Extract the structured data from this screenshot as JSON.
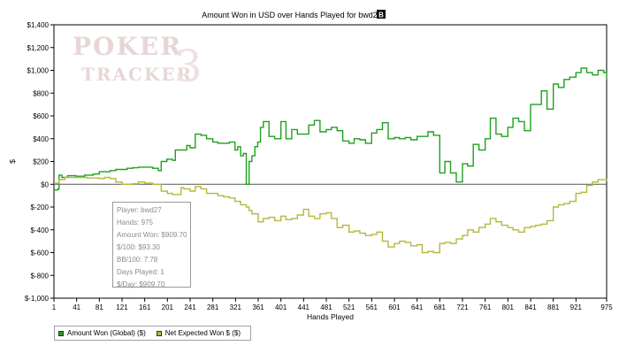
{
  "chart_data": {
    "type": "line",
    "title": "Amount Won in USD over Hands Played for bwd27",
    "title_badge": "B",
    "xlabel": "Hands Played",
    "ylabel": "$",
    "xlim": [
      1,
      975
    ],
    "ylim": [
      -1000,
      1400
    ],
    "x_ticks": [
      1,
      41,
      81,
      121,
      161,
      201,
      241,
      281,
      321,
      361,
      401,
      441,
      481,
      521,
      561,
      601,
      641,
      681,
      721,
      761,
      801,
      841,
      881,
      921,
      975
    ],
    "y_ticks": [
      {
        "value": 1400,
        "label": "$1,400"
      },
      {
        "value": 1200,
        "label": "$1,200"
      },
      {
        "value": 1000,
        "label": "$1,000"
      },
      {
        "value": 800,
        "label": "$800"
      },
      {
        "value": 600,
        "label": "$600"
      },
      {
        "value": 400,
        "label": "$400"
      },
      {
        "value": 200,
        "label": "$200"
      },
      {
        "value": 0,
        "label": "$0"
      },
      {
        "value": -200,
        "label": "$-200"
      },
      {
        "value": -400,
        "label": "$-400"
      },
      {
        "value": -600,
        "label": "$-600"
      },
      {
        "value": -800,
        "label": "$-800"
      },
      {
        "value": -1000,
        "label": "$-1,000"
      }
    ],
    "grid": false,
    "legend_position": "bottom-left",
    "watermark": {
      "line1": "POKER",
      "line2": "TRACKER",
      "numeral": "3"
    },
    "series": [
      {
        "name": "Amount Won (Global) ($)",
        "color": "#1fa11f",
        "x": [
          1,
          8,
          10,
          15,
          25,
          40,
          55,
          70,
          81,
          90,
          100,
          105,
          110,
          121,
          130,
          140,
          150,
          161,
          175,
          185,
          190,
          200,
          210,
          215,
          225,
          235,
          241,
          250,
          260,
          270,
          281,
          290,
          300,
          310,
          320,
          325,
          330,
          335,
          340,
          345,
          350,
          355,
          360,
          365,
          370,
          380,
          390,
          401,
          410,
          420,
          430,
          441,
          450,
          460,
          470,
          481,
          490,
          500,
          510,
          521,
          530,
          540,
          550,
          561,
          570,
          580,
          590,
          601,
          610,
          620,
          630,
          641,
          650,
          660,
          670,
          681,
          690,
          700,
          710,
          721,
          730,
          740,
          750,
          761,
          770,
          780,
          790,
          801,
          810,
          820,
          830,
          841,
          850,
          860,
          870,
          881,
          890,
          900,
          910,
          921,
          930,
          940,
          950,
          960,
          970,
          975
        ],
        "y": [
          -50,
          -40,
          80,
          60,
          75,
          70,
          80,
          90,
          110,
          110,
          120,
          120,
          130,
          130,
          140,
          145,
          150,
          150,
          140,
          120,
          200,
          220,
          210,
          300,
          300,
          340,
          320,
          440,
          430,
          400,
          370,
          360,
          360,
          370,
          300,
          330,
          250,
          270,
          0,
          200,
          250,
          330,
          370,
          500,
          550,
          420,
          400,
          550,
          400,
          480,
          440,
          440,
          520,
          560,
          460,
          480,
          500,
          470,
          380,
          360,
          400,
          390,
          360,
          450,
          480,
          540,
          400,
          410,
          400,
          410,
          390,
          420,
          420,
          460,
          430,
          100,
          200,
          100,
          20,
          180,
          160,
          350,
          300,
          400,
          580,
          440,
          420,
          500,
          580,
          550,
          470,
          700,
          700,
          820,
          660,
          880,
          850,
          920,
          940,
          980,
          1020,
          980,
          960,
          1000,
          980,
          920
        ]
      },
      {
        "name": "Net Expected Won $ ($)",
        "color": "#b5b83a",
        "x": [
          1,
          10,
          20,
          40,
          60,
          81,
          90,
          100,
          110,
          121,
          130,
          140,
          150,
          161,
          175,
          190,
          201,
          210,
          220,
          225,
          230,
          241,
          250,
          260,
          270,
          281,
          290,
          300,
          310,
          320,
          330,
          340,
          345,
          350,
          361,
          370,
          380,
          390,
          401,
          410,
          420,
          430,
          441,
          450,
          460,
          470,
          481,
          490,
          500,
          510,
          521,
          530,
          540,
          550,
          561,
          570,
          580,
          590,
          601,
          610,
          620,
          630,
          641,
          650,
          660,
          670,
          681,
          690,
          700,
          710,
          721,
          730,
          740,
          750,
          761,
          770,
          780,
          790,
          801,
          810,
          820,
          830,
          841,
          850,
          860,
          870,
          881,
          890,
          900,
          910,
          921,
          930,
          940,
          950,
          960,
          975
        ],
        "y": [
          10,
          40,
          60,
          60,
          55,
          50,
          60,
          50,
          20,
          0,
          0,
          5,
          20,
          10,
          0,
          -60,
          -80,
          -90,
          -90,
          -30,
          -40,
          -60,
          -20,
          -40,
          -80,
          -80,
          -100,
          -110,
          -120,
          -150,
          -180,
          -200,
          -230,
          -260,
          -330,
          -300,
          -290,
          -320,
          -280,
          -310,
          -300,
          -270,
          -220,
          -280,
          -300,
          -260,
          -250,
          -300,
          -380,
          -360,
          -420,
          -410,
          -430,
          -450,
          -440,
          -420,
          -500,
          -550,
          -520,
          -500,
          -510,
          -540,
          -530,
          -600,
          -590,
          -600,
          -520,
          -510,
          -520,
          -480,
          -450,
          -400,
          -420,
          -380,
          -350,
          -300,
          -330,
          -360,
          -380,
          -400,
          -420,
          -380,
          -370,
          -360,
          -350,
          -320,
          -200,
          -180,
          -170,
          -150,
          -80,
          -70,
          -10,
          20,
          40,
          30
        ]
      }
    ]
  },
  "tooltip": {
    "lines": [
      "Player: bwd27",
      "Hands: 975",
      "Amount Won: $909.70",
      "$/100: $93.30",
      "BB/100: 7.78",
      "Days Played: 1",
      "$/Day: $909.70"
    ]
  },
  "legend": {
    "items": [
      {
        "label": "Amount Won (Global) ($)",
        "color": "#1fa11f"
      },
      {
        "label": "Net Expected Won $ ($)",
        "color": "#b5b83a"
      }
    ]
  }
}
